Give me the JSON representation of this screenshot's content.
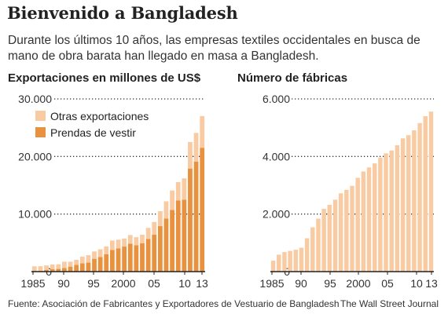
{
  "title": "Bienvenido a Bangladesh",
  "subtitle": "Durante los últimos 10 años, las empresas textiles occidentales en busca de mano de obra barata han llegado en masa a Bangladesh.",
  "footer": {
    "source": "Fuente: Asociación de Fabricantes y Exportadores de Vestuario de Bangladesh",
    "credit": "The Wall Street Journal"
  },
  "colors": {
    "primary": "#e8913f",
    "secondary": "#f9cba2",
    "grid": "#333333",
    "text": "#222222"
  },
  "chart_data": [
    {
      "type": "bar",
      "stacked": true,
      "title": "Exportaciones en millones de US$",
      "categories": [
        "1985",
        "1986",
        "1987",
        "1988",
        "1989",
        "1990",
        "1991",
        "1992",
        "1993",
        "1994",
        "1995",
        "1996",
        "1997",
        "1998",
        "1999",
        "2000",
        "2001",
        "2002",
        "2003",
        "2004",
        "2005",
        "2006",
        "2007",
        "2008",
        "2009",
        "2010",
        "2011",
        "2012",
        "2013"
      ],
      "xticks": [
        "1985",
        "90",
        "95",
        "2000",
        "05",
        "10",
        "13"
      ],
      "yticks": [
        "30.000",
        "20.000",
        "10.000",
        "0"
      ],
      "ylim": [
        0,
        30000
      ],
      "grid": "dotted",
      "legend": {
        "position": "top-left",
        "entries": [
          "Otras exportaciones",
          "Prendas de vestir"
        ]
      },
      "series": [
        {
          "name": "Prendas de vestir",
          "color": "#e8913f",
          "values": [
            120,
            130,
            300,
            430,
            470,
            620,
            870,
            1180,
            1450,
            1560,
            2230,
            2550,
            3000,
            3780,
            4020,
            4350,
            4860,
            4580,
            4910,
            5690,
            6420,
            7900,
            9210,
            10700,
            12350,
            12500,
            17910,
            19090,
            21520
          ]
        },
        {
          "name": "Otras exportaciones",
          "color": "#f9cba2",
          "values": [
            800,
            800,
            770,
            800,
            800,
            1100,
            850,
            870,
            1150,
            1290,
            1270,
            1330,
            1380,
            1630,
            1530,
            1400,
            1500,
            1400,
            1500,
            1900,
            2200,
            2600,
            3000,
            3400,
            3200,
            3700,
            4600,
            5000,
            5500
          ]
        }
      ]
    },
    {
      "type": "bar",
      "title": "Número de fábricas",
      "categories": [
        "1985",
        "1986",
        "1987",
        "1988",
        "1989",
        "1990",
        "1991",
        "1992",
        "1993",
        "1994",
        "1995",
        "1996",
        "1997",
        "1998",
        "1999",
        "2000",
        "2001",
        "2002",
        "2003",
        "2004",
        "2005",
        "2006",
        "2007",
        "2008",
        "2009",
        "2010",
        "2011",
        "2012",
        "2013"
      ],
      "xticks": [
        "1985",
        "90",
        "95",
        "2000",
        "05",
        "10",
        "13"
      ],
      "yticks": [
        "6.000",
        "4.000",
        "2.000",
        "0"
      ],
      "ylim": [
        0,
        6000
      ],
      "grid": "dotted",
      "series": [
        {
          "name": "",
          "color": "#f9cba2",
          "values": [
            380,
            590,
            680,
            720,
            760,
            830,
            1160,
            1540,
            1840,
            2180,
            2320,
            2500,
            2720,
            2840,
            2980,
            3260,
            3480,
            3620,
            3760,
            3960,
            4110,
            4210,
            4390,
            4630,
            4740,
            4910,
            5160,
            5400,
            5560
          ]
        }
      ]
    }
  ]
}
